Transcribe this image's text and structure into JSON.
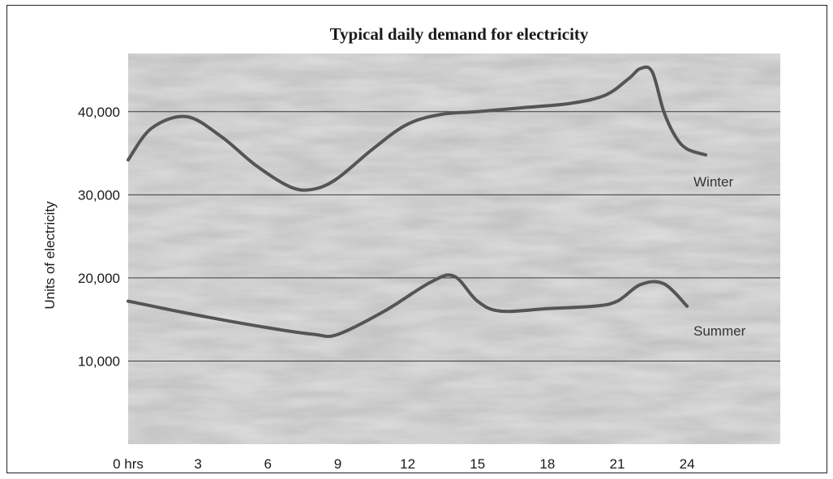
{
  "chart_data": {
    "type": "line",
    "title": "Typical daily demand for electricity",
    "xlabel": "",
    "ylabel": "Units of electricity",
    "x_tick_labels": [
      "0 hrs",
      "3",
      "6",
      "9",
      "12",
      "15",
      "18",
      "21",
      "24"
    ],
    "x_ticks": [
      0,
      3,
      6,
      9,
      12,
      15,
      18,
      21,
      24
    ],
    "y_tick_labels": [
      "10,000",
      "20,000",
      "30,000",
      "40,000"
    ],
    "y_ticks": [
      10000,
      20000,
      30000,
      40000
    ],
    "xlim": [
      0,
      28
    ],
    "ylim": [
      0,
      47000
    ],
    "grid": "horizontal",
    "background": "#bdbdbd",
    "line_color": "#555555",
    "series": [
      {
        "name": "Winter",
        "x": [
          0,
          1,
          2.5,
          4,
          5.5,
          7,
          8,
          9,
          10.5,
          12,
          13.5,
          15,
          17,
          19,
          20.5,
          21.5,
          22,
          22.5,
          23,
          23.5,
          24,
          24.8
        ],
        "y": [
          34200,
          38000,
          39400,
          37000,
          33500,
          30900,
          30700,
          32000,
          35500,
          38500,
          39700,
          40000,
          40500,
          41000,
          42000,
          44000,
          45200,
          44800,
          40000,
          37000,
          35500,
          34800
        ]
      },
      {
        "name": "Summer",
        "x": [
          0,
          3,
          6,
          8,
          9,
          11,
          13,
          14,
          15,
          16,
          18,
          20,
          21,
          22,
          23,
          24
        ],
        "y": [
          17200,
          15500,
          14000,
          13200,
          13200,
          16000,
          19500,
          20200,
          17200,
          16000,
          16300,
          16600,
          17200,
          19200,
          19300,
          16600
        ]
      }
    ]
  }
}
